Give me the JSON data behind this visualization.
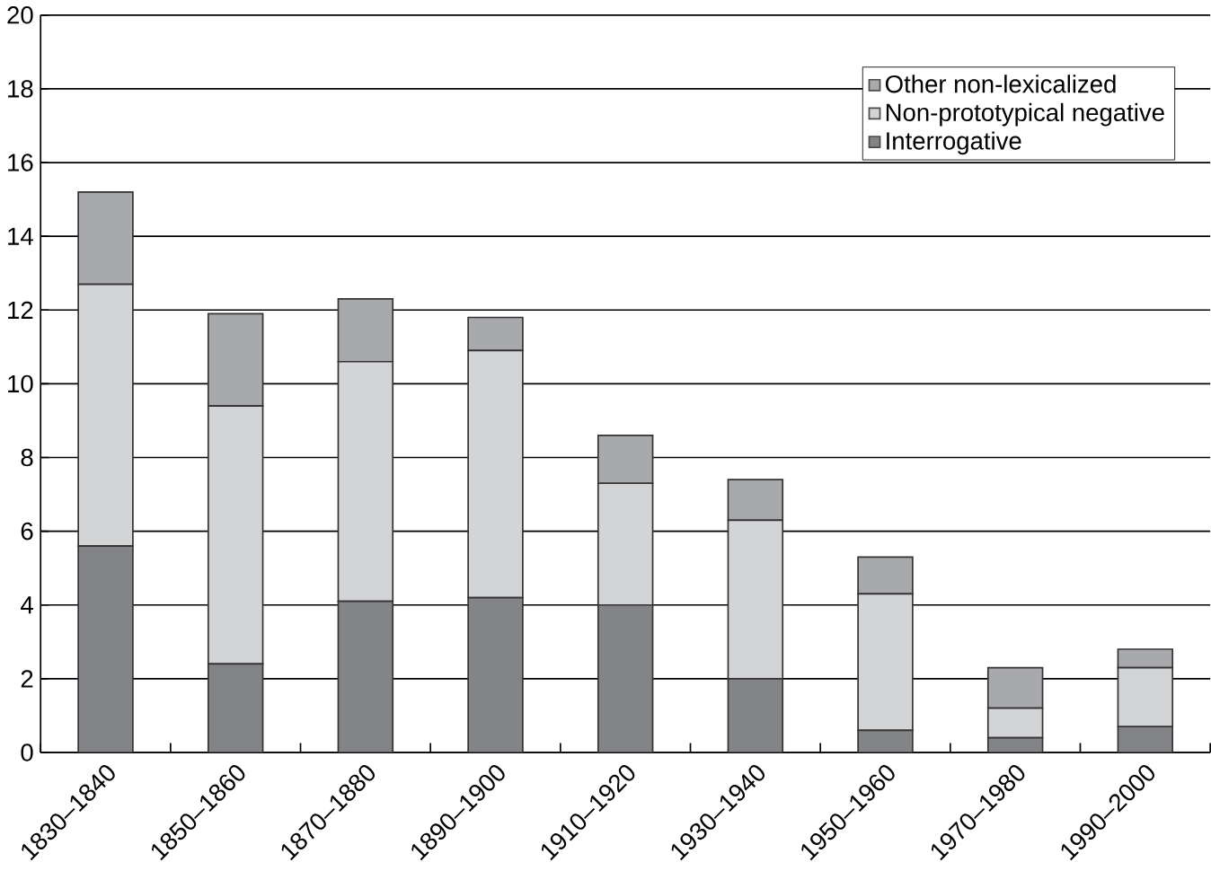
{
  "chart_data": {
    "type": "bar",
    "stacked": true,
    "categories": [
      "1830–1840",
      "1850–1860",
      "1870–1880",
      "1890–1900",
      "1910–1920",
      "1930–1940",
      "1950–1960",
      "1970–1980",
      "1990–2000"
    ],
    "series": [
      {
        "name": "Interrogative",
        "color": "#838487",
        "values": [
          5.6,
          2.4,
          4.1,
          4.2,
          4.0,
          2.0,
          0.6,
          0.4,
          0.7
        ]
      },
      {
        "name": "Non-prototypical negative",
        "color": "#d3d4d6",
        "values": [
          7.1,
          7.0,
          6.5,
          6.7,
          3.3,
          4.3,
          3.7,
          0.8,
          1.6
        ]
      },
      {
        "name": "Other non-lexicalized",
        "color": "#a8a9ac",
        "values": [
          2.5,
          2.5,
          1.7,
          0.9,
          1.3,
          1.1,
          1.0,
          1.1,
          0.5
        ]
      }
    ],
    "ylim": [
      0,
      20
    ],
    "yticks": [
      0,
      2,
      4,
      6,
      8,
      10,
      12,
      14,
      16,
      18,
      20
    ],
    "grid": "y",
    "legend": "top right"
  }
}
